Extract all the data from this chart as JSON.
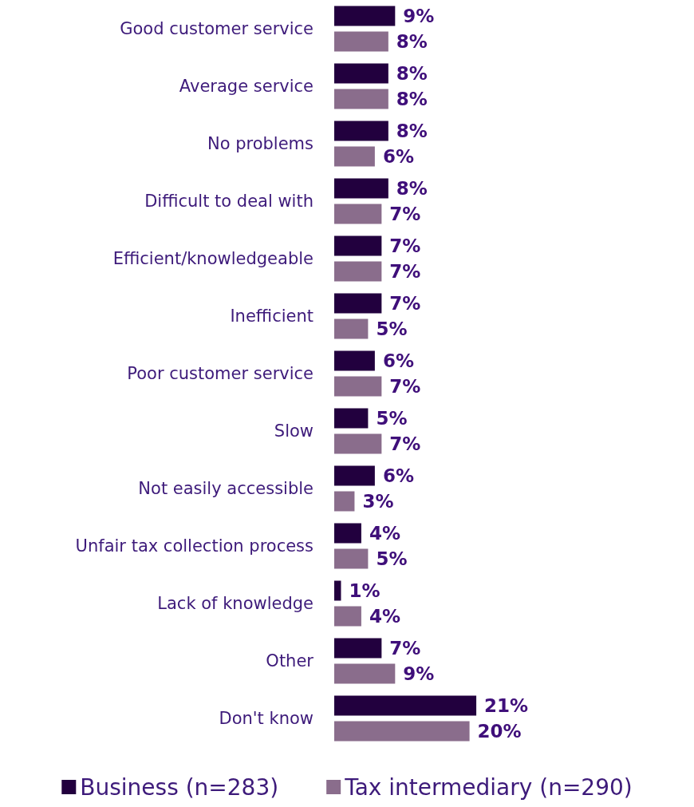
{
  "chart_data": {
    "type": "bar",
    "orientation": "horizontal",
    "legend": "bottom",
    "categories": [
      "Good customer service",
      "Average service",
      "No problems",
      "Difficult to deal with",
      "Efficient/knowledgeable",
      "Inefficient",
      "Poor customer service",
      "Slow",
      "Not easily accessible",
      "Unfair tax collection process",
      "Lack of knowledge",
      "Other",
      "Don't know"
    ],
    "series": [
      {
        "name": "Business (n=283)",
        "color": "#22003e",
        "values": [
          9,
          8,
          8,
          8,
          7,
          7,
          6,
          5,
          6,
          4,
          1,
          7,
          21
        ],
        "value_labels": [
          "9%",
          "8%",
          "8%",
          "8%",
          "7%",
          "7%",
          "6%",
          "5%",
          "6%",
          "4%",
          "1%",
          "7%",
          "21%"
        ]
      },
      {
        "name": "Tax intermediary (n=290)",
        "color": "#8a6d8c",
        "values": [
          8,
          8,
          6,
          7,
          7,
          5,
          7,
          7,
          3,
          5,
          4,
          9,
          20
        ],
        "value_labels": [
          "8%",
          "8%",
          "6%",
          "7%",
          "7%",
          "5%",
          "7%",
          "7%",
          "3%",
          "5%",
          "4%",
          "9%",
          "20%"
        ]
      }
    ]
  }
}
